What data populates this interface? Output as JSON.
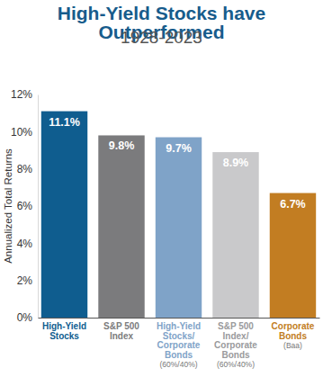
{
  "chart_data": {
    "type": "bar",
    "title": "High-Yield Stocks have\nOutperformed",
    "subtitle": "1928-2023",
    "y_label": "Annualized Total Returns",
    "categories": [
      "High-Yield\nStocks",
      "S&P 500\nIndex",
      "High-Yield\nStocks/\nCorporate\nBonds\n(60%/40%)",
      "S&P 500\nIndex/\nCorporate\nBonds\n(60%/40%)",
      "Corporate\nBonds\n(Baa)"
    ],
    "values": [
      11.1,
      9.8,
      9.7,
      8.9,
      6.7
    ],
    "value_labels": [
      "11.1%",
      "9.8%",
      "9.7%",
      "8.9%",
      "6.7%"
    ],
    "colors": [
      "#0f5d8f",
      "#7b7b7d",
      "#7fa3c8",
      "#c9c9cb",
      "#c27d22"
    ],
    "ylim": [
      0,
      12
    ],
    "yticks": [
      {
        "value": 0,
        "label": "0%"
      },
      {
        "value": 2,
        "label": "2%"
      },
      {
        "value": 4,
        "label": "4%"
      },
      {
        "value": 6,
        "label": "6%"
      },
      {
        "value": 8,
        "label": "8%"
      },
      {
        "value": 10,
        "label": "10%"
      },
      {
        "value": 12,
        "label": "12%"
      }
    ],
    "grid": false,
    "data_labels": true
  }
}
